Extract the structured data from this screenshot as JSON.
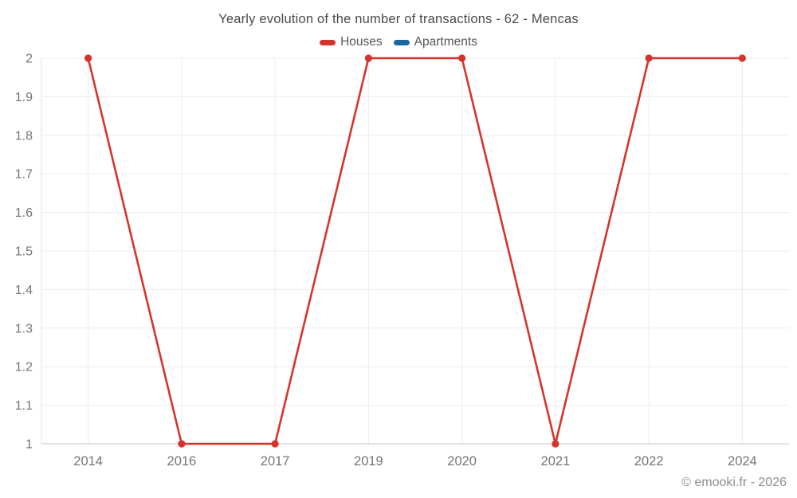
{
  "chart_data": {
    "type": "line",
    "title": "Yearly evolution of the number of transactions - 62 - Mencas",
    "categories": [
      "2014",
      "2016",
      "2017",
      "2019",
      "2020",
      "2021",
      "2022",
      "2024"
    ],
    "series": [
      {
        "name": "Houses",
        "color": "#d5342c",
        "values": [
          2,
          1,
          1,
          2,
          2,
          1,
          2,
          2
        ]
      },
      {
        "name": "Apartments",
        "color": "#17699c",
        "values": []
      }
    ],
    "xlabel": "",
    "ylabel": "",
    "ylim": [
      1,
      2
    ],
    "yticks": [
      "1",
      "1.1",
      "1.2",
      "1.3",
      "1.4",
      "1.5",
      "1.6",
      "1.7",
      "1.8",
      "1.9",
      "2"
    ],
    "grid": true,
    "legend_position": "top",
    "colors": {
      "grid": "#ececec",
      "axis_line": "#c9c9c9",
      "left_axis_line": "#e2e2e2",
      "tick_text": "#757575"
    },
    "watermark": "© emooki.fr - 2026"
  }
}
